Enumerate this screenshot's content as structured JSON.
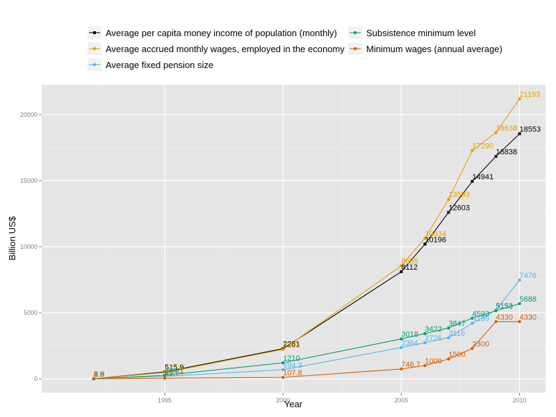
{
  "chart_data": {
    "type": "line",
    "title": "",
    "xlabel": "Year",
    "ylabel": "Billion US$",
    "xlim": [
      1989.8,
      2011.1
    ],
    "ylim": [
      -1050,
      22260
    ],
    "x_ticks": [
      1995,
      2000,
      2005,
      2010
    ],
    "y_ticks": [
      0,
      5000,
      10000,
      15000,
      20000
    ],
    "grid": true,
    "legend_position": "top",
    "series": [
      {
        "name": "Average per capita money income of population (monthly)",
        "color": "#000000",
        "marker": "square",
        "x": [
          1992,
          1995,
          2000,
          2005,
          2006,
          2007,
          2008,
          2009,
          2010
        ],
        "y": [
          6.0,
          515.9,
          2281,
          8112,
          10196,
          12603,
          14941,
          16838,
          18553
        ],
        "labels": [
          "6.0",
          "515.9",
          "2281",
          "8112",
          "10196",
          "12603",
          "14941",
          "16838",
          "18553"
        ]
      },
      {
        "name": "Average accrued monthly wages, employed in the economy",
        "color": "#e69f00",
        "marker": "circle",
        "x": [
          1992,
          1995,
          2000,
          2005,
          2006,
          2007,
          2008,
          2009,
          2010
        ],
        "y": [
          5.9,
          472.4,
          2223,
          8555,
          10634,
          13593,
          17290,
          18638,
          21193
        ],
        "labels": [
          "5.9",
          "472.4",
          "2223",
          "8555",
          "10634",
          "13593",
          "17290",
          "18638",
          "21193"
        ]
      },
      {
        "name": "Average fixed pension size",
        "color": "#56b4e9",
        "marker": "circle",
        "x": [
          1992,
          1995,
          2000,
          2005,
          2006,
          2007,
          2008,
          2009,
          2010
        ],
        "y": [
          1.6,
          188.1,
          694.3,
          2364,
          2726,
          3116,
          4199,
          5191,
          7476
        ],
        "labels": [
          "1.6",
          "188.1",
          "694.3",
          "2364",
          "2726",
          "3116",
          "4199",
          "5191",
          "7476"
        ]
      },
      {
        "name": "Subsistence minimum level",
        "color": "#009e73",
        "marker": "circle",
        "x": [
          1992,
          1995,
          2000,
          2005,
          2006,
          2007,
          2008,
          2009,
          2010
        ],
        "y": [
          1.9,
          264.1,
          1210,
          3018,
          3422,
          3847,
          4593,
          5153,
          5688
        ],
        "labels": [
          "1.9",
          "264.1",
          "1210",
          "3018",
          "3422",
          "3847",
          "4593",
          "5153",
          "5688"
        ]
      },
      {
        "name": "Minimum wages (annual average)",
        "color": "#d55e00",
        "marker": "circle",
        "x": [
          1992,
          1995,
          2000,
          2005,
          2006,
          2007,
          2008,
          2009,
          2010
        ],
        "y": [
          0.5,
          43.7,
          107.8,
          746.7,
          1000,
          1500,
          2300,
          4330,
          4330
        ],
        "labels": [
          "0.5",
          "43.7",
          "107.8",
          "746.7",
          "1000",
          "1500",
          "2300",
          "4330",
          "4330"
        ]
      }
    ],
    "legend_layout": [
      [
        "Average per capita money income of population (monthly)",
        "Subsistence minimum level"
      ],
      [
        "Average accrued monthly wages, employed in the economy",
        "Minimum wages (annual average)"
      ],
      [
        "Average fixed pension size"
      ]
    ]
  }
}
